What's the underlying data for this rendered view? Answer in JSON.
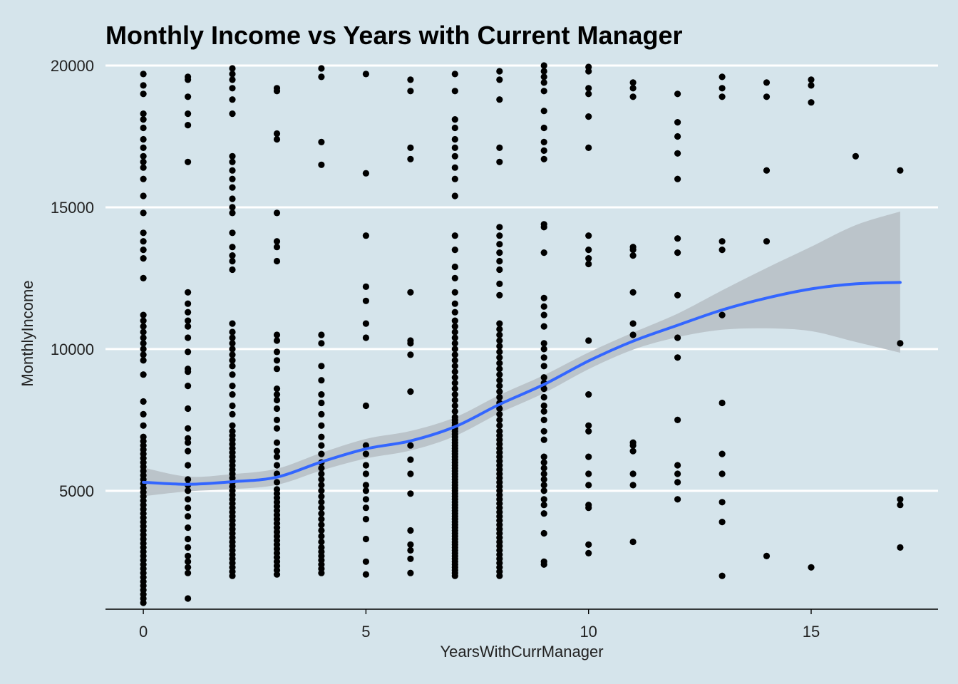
{
  "chart_data": {
    "type": "scatter",
    "title": "Monthly Income vs Years with Current Manager",
    "xlabel": "YearsWithCurrManager",
    "ylabel": "MonthlyIncome",
    "xlim": [
      -0.85,
      17.85
    ],
    "ylim": [
      1000,
      20000
    ],
    "x_ticks": [
      0,
      5,
      10,
      15
    ],
    "y_ticks": [
      5000,
      10000,
      15000,
      20000
    ],
    "grid": "horizontal major lines only",
    "colors": {
      "background": "#d5e4eb",
      "points": "#000000",
      "smooth_line": "#3366ff",
      "ribbon": "#b9c2c8",
      "grid": "#ffffff"
    },
    "points_by_x": [
      {
        "x": 0,
        "y": [
          1050,
          1200,
          1350,
          1500,
          1650,
          1800,
          1950,
          2100,
          2250,
          2400,
          2550,
          2700,
          2850,
          3000,
          3150,
          3300,
          3450,
          3600,
          3750,
          3900,
          4050,
          4200,
          4350,
          4500,
          4650,
          4800,
          4950,
          5100,
          5250,
          5400,
          5550,
          5700,
          5850,
          6000,
          6150,
          6300,
          6450,
          6600,
          6750,
          6900,
          7300,
          7700,
          8150,
          9100,
          9600,
          9800,
          10000,
          10200,
          10400,
          10600,
          10800,
          11000,
          11200,
          12500,
          13200,
          13500,
          13800,
          14100,
          14800,
          15400,
          16000,
          16400,
          16600,
          16800,
          17100,
          17400,
          17800,
          18100,
          18300,
          19000,
          19300,
          19700
        ]
      },
      {
        "x": 1,
        "y": [
          1200,
          2100,
          2300,
          2500,
          2700,
          3000,
          3300,
          3700,
          4100,
          4400,
          4700,
          5000,
          5200,
          5400,
          5900,
          6400,
          6700,
          6850,
          7200,
          7900,
          8700,
          9200,
          9300,
          9900,
          10400,
          10800,
          11000,
          11300,
          11600,
          12000,
          16600,
          17900,
          18300,
          18900,
          19500,
          19600
        ]
      },
      {
        "x": 2,
        "y": [
          2000,
          2150,
          2300,
          2450,
          2600,
          2750,
          2900,
          3050,
          3200,
          3350,
          3500,
          3650,
          3800,
          3950,
          4100,
          4250,
          4400,
          4550,
          4700,
          4850,
          5000,
          5150,
          5300,
          5450,
          5600,
          5750,
          5900,
          6050,
          6200,
          6350,
          6500,
          6650,
          6800,
          6950,
          7100,
          7300,
          7700,
          8000,
          8400,
          8700,
          9100,
          9400,
          9600,
          9800,
          10000,
          10200,
          10400,
          10600,
          10900,
          12800,
          13100,
          13300,
          13600,
          14100,
          14800,
          15000,
          15300,
          15700,
          16000,
          16300,
          16600,
          16800,
          18300,
          18800,
          19200,
          19500,
          19700,
          19900
        ]
      },
      {
        "x": 3,
        "y": [
          2050,
          2200,
          2350,
          2500,
          2650,
          2800,
          2950,
          3100,
          3250,
          3400,
          3550,
          3700,
          3850,
          4000,
          4150,
          4300,
          4450,
          4600,
          4750,
          4900,
          5050,
          5300,
          5600,
          5900,
          6200,
          6400,
          6700,
          7200,
          7500,
          7900,
          8200,
          8400,
          8600,
          9300,
          9600,
          9900,
          10300,
          10500,
          13100,
          13600,
          13800,
          14800,
          17400,
          17600,
          19100,
          19200
        ]
      },
      {
        "x": 4,
        "y": [
          2100,
          2250,
          2400,
          2550,
          2700,
          2850,
          3000,
          3200,
          3400,
          3600,
          3800,
          4000,
          4200,
          4400,
          4600,
          4800,
          5000,
          5200,
          5400,
          5600,
          5800,
          6000,
          6300,
          6600,
          6900,
          7300,
          7700,
          8100,
          8400,
          8900,
          9400,
          10200,
          10500,
          16500,
          17300,
          19600,
          19900
        ]
      },
      {
        "x": 5,
        "y": [
          2050,
          2500,
          3300,
          4000,
          4400,
          4700,
          5000,
          5200,
          5600,
          5900,
          6300,
          6600,
          8000,
          10400,
          10900,
          11700,
          12200,
          14000,
          16200,
          19700
        ]
      },
      {
        "x": 6,
        "y": [
          2100,
          2600,
          2900,
          3100,
          3600,
          4900,
          5600,
          6100,
          6600,
          8500,
          9800,
          10200,
          10300,
          12000,
          16700,
          17100,
          19100,
          19500
        ]
      },
      {
        "x": 7,
        "y": [
          2000,
          2100,
          2200,
          2300,
          2400,
          2500,
          2600,
          2700,
          2800,
          2900,
          3000,
          3100,
          3200,
          3300,
          3400,
          3500,
          3600,
          3700,
          3800,
          3900,
          4000,
          4100,
          4200,
          4300,
          4400,
          4500,
          4600,
          4700,
          4800,
          4900,
          5000,
          5100,
          5200,
          5300,
          5400,
          5500,
          5600,
          5700,
          5800,
          5900,
          6000,
          6100,
          6200,
          6300,
          6400,
          6500,
          6600,
          6700,
          6800,
          6900,
          7000,
          7100,
          7200,
          7300,
          7400,
          7500,
          7600,
          7800,
          8000,
          8200,
          8400,
          8600,
          8800,
          9000,
          9200,
          9400,
          9600,
          9800,
          10000,
          10200,
          10400,
          10600,
          10800,
          11000,
          11300,
          11600,
          12000,
          12500,
          12900,
          13500,
          14000,
          15400,
          16000,
          16400,
          16800,
          17100,
          17400,
          17800,
          18100,
          19100,
          19700
        ]
      },
      {
        "x": 8,
        "y": [
          2000,
          2150,
          2300,
          2450,
          2600,
          2750,
          2900,
          3050,
          3200,
          3350,
          3500,
          3650,
          3800,
          3950,
          4100,
          4250,
          4400,
          4550,
          4700,
          4850,
          5000,
          5150,
          5300,
          5450,
          5600,
          5750,
          5900,
          6050,
          6200,
          6350,
          6500,
          6650,
          6800,
          6950,
          7100,
          7300,
          7500,
          7700,
          7900,
          8100,
          8300,
          8500,
          8700,
          8900,
          9100,
          9300,
          9500,
          9700,
          9900,
          10100,
          10300,
          10500,
          10700,
          10900,
          11900,
          12300,
          12800,
          13100,
          13400,
          13700,
          14000,
          14300,
          16600,
          17100,
          18800,
          19500,
          19800
        ]
      },
      {
        "x": 9,
        "y": [
          2400,
          2500,
          3500,
          4200,
          4500,
          4700,
          5000,
          5200,
          5400,
          5600,
          5800,
          6000,
          6200,
          6800,
          7100,
          7500,
          7800,
          8000,
          8300,
          8600,
          8800,
          9000,
          9400,
          9700,
          10000,
          10200,
          10800,
          11200,
          11500,
          11800,
          13400,
          14300,
          14400,
          16700,
          17000,
          17300,
          17800,
          18400,
          19100,
          19400,
          19600,
          19800,
          20000
        ]
      },
      {
        "x": 10,
        "y": [
          2800,
          3100,
          4400,
          4500,
          5200,
          5600,
          6200,
          7100,
          7300,
          8400,
          10300,
          13000,
          13200,
          13500,
          14000,
          17100,
          18200,
          19000,
          19200,
          19800,
          19950
        ]
      },
      {
        "x": 11,
        "y": [
          3200,
          5200,
          5600,
          6400,
          6600,
          6700,
          10500,
          10900,
          12000,
          13300,
          13500,
          13600,
          18900,
          19200,
          19400
        ]
      },
      {
        "x": 12,
        "y": [
          4700,
          5300,
          5600,
          5900,
          7500,
          9700,
          10400,
          11900,
          13400,
          13900,
          16000,
          16900,
          17500,
          18000,
          19000
        ]
      },
      {
        "x": 13,
        "y": [
          2000,
          3900,
          4600,
          5600,
          6300,
          8100,
          11200,
          13500,
          13800,
          18900,
          19200,
          19600
        ]
      },
      {
        "x": 14,
        "y": [
          2700,
          13800,
          16300,
          18900,
          19400
        ]
      },
      {
        "x": 15,
        "y": [
          2300,
          18700,
          19300,
          19500
        ]
      },
      {
        "x": 16,
        "y": [
          16800
        ]
      },
      {
        "x": 17,
        "y": [
          3000,
          4500,
          4700,
          10200,
          16300
        ]
      }
    ],
    "smooth": {
      "x": [
        0.0,
        1.0,
        2.0,
        3.0,
        4.0,
        5.0,
        6.0,
        7.0,
        8.0,
        9.0,
        10.0,
        11.0,
        12.0,
        13.0,
        14.0,
        15.0,
        16.0,
        17.0
      ],
      "y": [
        5300,
        5230,
        5320,
        5480,
        6020,
        6480,
        6760,
        7260,
        8050,
        8750,
        9580,
        10280,
        10840,
        11380,
        11800,
        12120,
        12300,
        12350
      ],
      "lower": [
        4810,
        4980,
        5060,
        5210,
        5720,
        6140,
        6420,
        6930,
        7740,
        8450,
        9290,
        9980,
        10420,
        10680,
        10730,
        10630,
        10250,
        9870
      ],
      "upper": [
        5820,
        5500,
        5590,
        5780,
        6340,
        6830,
        7110,
        7590,
        8380,
        9080,
        9880,
        10580,
        11250,
        12070,
        12860,
        13610,
        14370,
        14850
      ]
    }
  }
}
